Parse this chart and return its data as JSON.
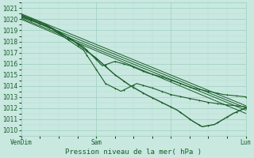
{
  "title": "Pression niveau de la mer( hPa )",
  "ylim": [
    1009.5,
    1021.5
  ],
  "xlim": [
    0,
    72
  ],
  "ytick_values": [
    1010,
    1011,
    1012,
    1013,
    1014,
    1015,
    1016,
    1017,
    1018,
    1019,
    1020,
    1021
  ],
  "xtick_positions": [
    0,
    24,
    48,
    72
  ],
  "xtick_labels": [
    "VenDim",
    "Sam",
    "",
    "Lun"
  ],
  "background_color": "#c8e8e0",
  "grid_major_color": "#9ecfbf",
  "grid_minor_color": "#b8ddd4",
  "line_color": "#1a5c28",
  "title_color": "#1a5c28",
  "tick_color": "#1a5c28"
}
